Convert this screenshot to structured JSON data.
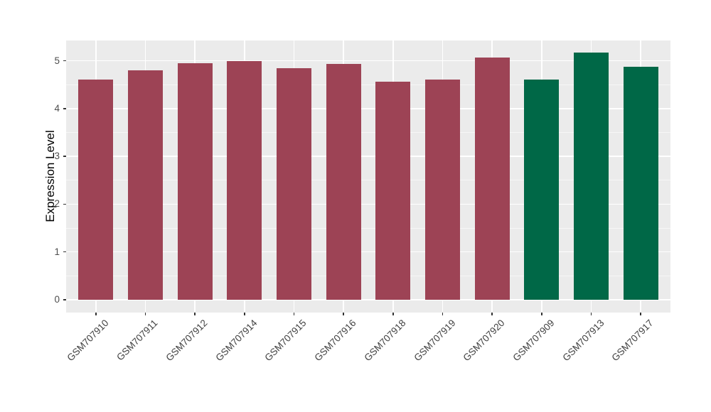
{
  "figure": {
    "background_color": "#FFFFFF",
    "panel_background_color": "#EBEBEB",
    "gridline_color": "#FFFFFF",
    "tick_color": "#333333",
    "axis_text_color": "#4D4D4D"
  },
  "chart_data": {
    "type": "bar",
    "title": "",
    "xlabel": "",
    "ylabel": "Expression Level",
    "categories": [
      "GSM707910",
      "GSM707911",
      "GSM707912",
      "GSM707914",
      "GSM707915",
      "GSM707916",
      "GSM707918",
      "GSM707919",
      "GSM707920",
      "GSM707909",
      "GSM707913",
      "GSM707917"
    ],
    "values": [
      4.6,
      4.8,
      4.95,
      4.99,
      4.85,
      4.93,
      4.56,
      4.6,
      5.06,
      4.6,
      5.17,
      4.87
    ],
    "colors": [
      "#9D4355",
      "#9D4355",
      "#9D4355",
      "#9D4355",
      "#9D4355",
      "#9D4355",
      "#9D4355",
      "#9D4355",
      "#9D4355",
      "#006847",
      "#006847",
      "#006847"
    ],
    "groups": [
      {
        "color": "#9D4355",
        "samples": [
          "GSM707910",
          "GSM707911",
          "GSM707912",
          "GSM707914",
          "GSM707915",
          "GSM707916",
          "GSM707918",
          "GSM707919",
          "GSM707920"
        ]
      },
      {
        "color": "#006847",
        "samples": [
          "GSM707909",
          "GSM707913",
          "GSM707917"
        ]
      }
    ],
    "yticks": [
      0,
      1,
      2,
      3,
      4,
      5
    ],
    "yticks_minor": [
      0.5,
      1.5,
      2.5,
      3.5,
      4.5
    ],
    "ylim": [
      -0.26,
      5.43
    ],
    "grid": true,
    "legend_position": "none",
    "x_label_rotation_deg": 45
  }
}
